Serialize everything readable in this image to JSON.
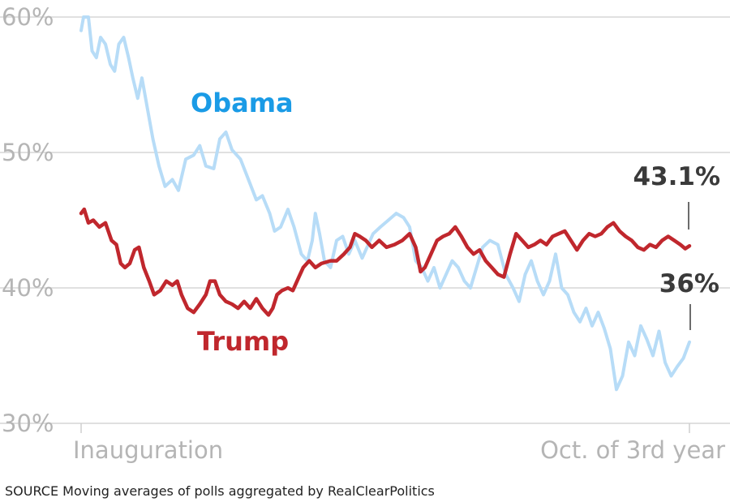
{
  "chart_data": {
    "type": "line",
    "ylim": [
      30,
      60
    ],
    "yticks": [
      {
        "value": 30,
        "label": "30%"
      },
      {
        "value": 40,
        "label": "40%"
      },
      {
        "value": 50,
        "label": "50%"
      },
      {
        "value": 60,
        "label": "60%"
      }
    ],
    "xticks": [
      {
        "value": 0,
        "label": "Inauguration"
      },
      {
        "value": 1,
        "label": "Oct. of 3rd year"
      }
    ],
    "grid": true,
    "series": [
      {
        "name": "Obama",
        "color": "#b7dcf7",
        "label_color": "#1a9be6",
        "end_label": "36%",
        "points": [
          [
            0,
            59
          ],
          [
            0.004,
            60
          ],
          [
            0.012,
            60
          ],
          [
            0.018,
            57.5
          ],
          [
            0.025,
            57
          ],
          [
            0.032,
            58.5
          ],
          [
            0.04,
            58
          ],
          [
            0.048,
            56.5
          ],
          [
            0.055,
            56
          ],
          [
            0.062,
            58
          ],
          [
            0.07,
            58.5
          ],
          [
            0.078,
            57
          ],
          [
            0.085,
            55.5
          ],
          [
            0.093,
            54
          ],
          [
            0.1,
            55.5
          ],
          [
            0.108,
            53.5
          ],
          [
            0.118,
            51
          ],
          [
            0.128,
            49
          ],
          [
            0.138,
            47.5
          ],
          [
            0.15,
            48
          ],
          [
            0.16,
            47.2
          ],
          [
            0.172,
            49.5
          ],
          [
            0.185,
            49.8
          ],
          [
            0.195,
            50.5
          ],
          [
            0.205,
            49
          ],
          [
            0.218,
            48.8
          ],
          [
            0.228,
            51
          ],
          [
            0.238,
            51.5
          ],
          [
            0.248,
            50.2
          ],
          [
            0.262,
            49.5
          ],
          [
            0.275,
            48
          ],
          [
            0.288,
            46.5
          ],
          [
            0.298,
            46.8
          ],
          [
            0.31,
            45.5
          ],
          [
            0.318,
            44.2
          ],
          [
            0.328,
            44.5
          ],
          [
            0.34,
            45.8
          ],
          [
            0.35,
            44.5
          ],
          [
            0.362,
            42.5
          ],
          [
            0.372,
            42
          ],
          [
            0.38,
            43.5
          ],
          [
            0.385,
            45.5
          ],
          [
            0.392,
            44
          ],
          [
            0.4,
            42
          ],
          [
            0.41,
            41.5
          ],
          [
            0.42,
            43.5
          ],
          [
            0.43,
            43.8
          ],
          [
            0.44,
            42.5
          ],
          [
            0.45,
            43.5
          ],
          [
            0.462,
            42.2
          ],
          [
            0.47,
            43
          ],
          [
            0.48,
            44
          ],
          [
            0.492,
            44.5
          ],
          [
            0.505,
            45
          ],
          [
            0.518,
            45.5
          ],
          [
            0.53,
            45.2
          ],
          [
            0.54,
            44.5
          ],
          [
            0.55,
            42
          ],
          [
            0.56,
            41.5
          ],
          [
            0.57,
            40.5
          ],
          [
            0.58,
            41.5
          ],
          [
            0.59,
            40
          ],
          [
            0.6,
            41
          ],
          [
            0.61,
            42
          ],
          [
            0.62,
            41.5
          ],
          [
            0.63,
            40.5
          ],
          [
            0.64,
            40
          ],
          [
            0.65,
            41.5
          ],
          [
            0.66,
            43
          ],
          [
            0.672,
            43.5
          ],
          [
            0.685,
            43.2
          ],
          [
            0.698,
            41
          ],
          [
            0.71,
            40
          ],
          [
            0.72,
            39
          ],
          [
            0.73,
            41
          ],
          [
            0.74,
            42
          ],
          [
            0.75,
            40.5
          ],
          [
            0.76,
            39.5
          ],
          [
            0.77,
            40.5
          ],
          [
            0.78,
            42.5
          ],
          [
            0.79,
            40
          ],
          [
            0.8,
            39.5
          ],
          [
            0.81,
            38.2
          ],
          [
            0.82,
            37.5
          ],
          [
            0.83,
            38.5
          ],
          [
            0.84,
            37.2
          ],
          [
            0.85,
            38.2
          ],
          [
            0.86,
            37
          ],
          [
            0.87,
            35.5
          ],
          [
            0.88,
            32.5
          ],
          [
            0.89,
            33.5
          ],
          [
            0.9,
            36
          ],
          [
            0.91,
            35
          ],
          [
            0.92,
            37.2
          ],
          [
            0.93,
            36.2
          ],
          [
            0.94,
            35
          ],
          [
            0.95,
            36.8
          ],
          [
            0.96,
            34.5
          ],
          [
            0.97,
            33.5
          ],
          [
            0.98,
            34.2
          ],
          [
            0.99,
            34.8
          ],
          [
            1,
            36
          ]
        ]
      },
      {
        "name": "Trump",
        "color": "#c0272d",
        "label_color": "#c0272d",
        "end_label": "43.1%",
        "points": [
          [
            0,
            45.5
          ],
          [
            0.005,
            45.8
          ],
          [
            0.012,
            44.8
          ],
          [
            0.02,
            45
          ],
          [
            0.03,
            44.5
          ],
          [
            0.04,
            44.8
          ],
          [
            0.05,
            43.5
          ],
          [
            0.058,
            43.2
          ],
          [
            0.065,
            41.8
          ],
          [
            0.072,
            41.5
          ],
          [
            0.08,
            41.8
          ],
          [
            0.088,
            42.8
          ],
          [
            0.095,
            43
          ],
          [
            0.103,
            41.5
          ],
          [
            0.112,
            40.5
          ],
          [
            0.12,
            39.5
          ],
          [
            0.13,
            39.8
          ],
          [
            0.14,
            40.5
          ],
          [
            0.15,
            40.2
          ],
          [
            0.158,
            40.5
          ],
          [
            0.165,
            39.5
          ],
          [
            0.175,
            38.5
          ],
          [
            0.185,
            38.2
          ],
          [
            0.195,
            38.8
          ],
          [
            0.205,
            39.5
          ],
          [
            0.212,
            40.5
          ],
          [
            0.22,
            40.5
          ],
          [
            0.228,
            39.5
          ],
          [
            0.238,
            39
          ],
          [
            0.248,
            38.8
          ],
          [
            0.258,
            38.5
          ],
          [
            0.268,
            39
          ],
          [
            0.278,
            38.5
          ],
          [
            0.288,
            39.2
          ],
          [
            0.298,
            38.5
          ],
          [
            0.308,
            38
          ],
          [
            0.315,
            38.5
          ],
          [
            0.322,
            39.5
          ],
          [
            0.33,
            39.8
          ],
          [
            0.34,
            40
          ],
          [
            0.348,
            39.8
          ],
          [
            0.358,
            40.8
          ],
          [
            0.365,
            41.5
          ],
          [
            0.375,
            42
          ],
          [
            0.385,
            41.5
          ],
          [
            0.395,
            41.8
          ],
          [
            0.41,
            42
          ],
          [
            0.42,
            42
          ],
          [
            0.432,
            42.5
          ],
          [
            0.442,
            43
          ],
          [
            0.45,
            44
          ],
          [
            0.458,
            43.8
          ],
          [
            0.468,
            43.5
          ],
          [
            0.478,
            43
          ],
          [
            0.49,
            43.5
          ],
          [
            0.502,
            43
          ],
          [
            0.515,
            43.2
          ],
          [
            0.528,
            43.5
          ],
          [
            0.54,
            44
          ],
          [
            0.55,
            43
          ],
          [
            0.558,
            41.2
          ],
          [
            0.565,
            41.5
          ],
          [
            0.575,
            42.5
          ],
          [
            0.585,
            43.5
          ],
          [
            0.595,
            43.8
          ],
          [
            0.605,
            44
          ],
          [
            0.615,
            44.5
          ],
          [
            0.625,
            43.8
          ],
          [
            0.635,
            43
          ],
          [
            0.645,
            42.5
          ],
          [
            0.655,
            42.8
          ],
          [
            0.665,
            42
          ],
          [
            0.675,
            41.5
          ],
          [
            0.685,
            41
          ],
          [
            0.695,
            40.8
          ],
          [
            0.705,
            42.5
          ],
          [
            0.715,
            44
          ],
          [
            0.725,
            43.5
          ],
          [
            0.735,
            43
          ],
          [
            0.745,
            43.2
          ],
          [
            0.755,
            43.5
          ],
          [
            0.765,
            43.2
          ],
          [
            0.775,
            43.8
          ],
          [
            0.785,
            44
          ],
          [
            0.795,
            44.2
          ],
          [
            0.805,
            43.5
          ],
          [
            0.815,
            42.8
          ],
          [
            0.825,
            43.5
          ],
          [
            0.835,
            44
          ],
          [
            0.845,
            43.8
          ],
          [
            0.855,
            44
          ],
          [
            0.865,
            44.5
          ],
          [
            0.875,
            44.8
          ],
          [
            0.885,
            44.2
          ],
          [
            0.895,
            43.8
          ],
          [
            0.905,
            43.5
          ],
          [
            0.915,
            43
          ],
          [
            0.925,
            42.8
          ],
          [
            0.935,
            43.2
          ],
          [
            0.945,
            43
          ],
          [
            0.955,
            43.5
          ],
          [
            0.965,
            43.8
          ],
          [
            0.975,
            43.5
          ],
          [
            0.985,
            43.2
          ],
          [
            0.993,
            42.9
          ],
          [
            1,
            43.1
          ]
        ]
      }
    ],
    "source": "SOURCE Moving averages of polls aggregated by RealClearPolitics"
  }
}
